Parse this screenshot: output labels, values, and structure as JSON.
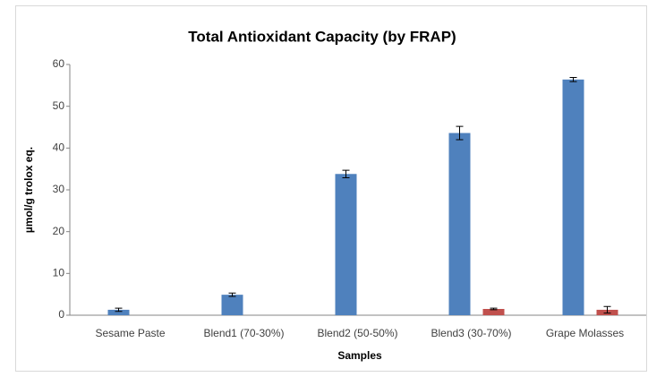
{
  "chart_data": {
    "type": "bar",
    "title": "Total Antioxidant Capacity (by FRAP)",
    "x_label": "Samples",
    "y_label": "µmol/g trolox eq.",
    "categories": [
      "Sesame Paste",
      "Blend1 (70-30%)",
      "Blend2 (50-50%)",
      "Blend3 (30-70%)",
      "Grape Molasses"
    ],
    "series": [
      {
        "color": "#4f81bd",
        "values": [
          1.3,
          4.9,
          33.8,
          43.6,
          56.4
        ],
        "errors": [
          0.4,
          0.4,
          0.9,
          1.6,
          0.5
        ]
      },
      {
        "color": "#c0504d",
        "values": [
          null,
          null,
          null,
          1.5,
          1.3
        ],
        "errors": [
          null,
          null,
          null,
          0.2,
          0.8
        ]
      }
    ],
    "ylim": [
      0,
      60
    ],
    "yticks": [
      0,
      10,
      20,
      30,
      40,
      50,
      60
    ],
    "grid": false
  }
}
